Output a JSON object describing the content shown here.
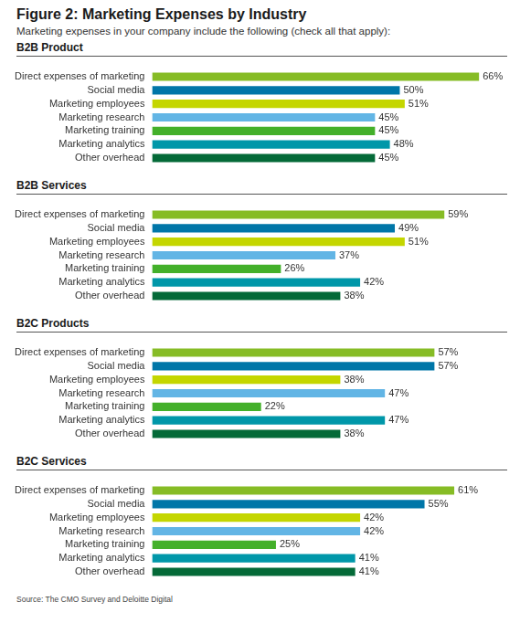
{
  "title": "Figure 2: Marketing Expenses by Industry",
  "subtitle": "Marketing expenses in your company include the following (check all that apply):",
  "source": "Source: The CMO Survey and Deloitte Digital",
  "chart_data": [
    {
      "type": "bar",
      "title": "B2B Product",
      "orientation": "horizontal",
      "categories": [
        "Direct expenses of marketing",
        "Social media",
        "Marketing employees",
        "Marketing research",
        "Marketing training",
        "Marketing analytics",
        "Other overhead"
      ],
      "values": [
        66,
        50,
        51,
        45,
        45,
        48,
        45
      ],
      "value_labels": [
        "66%",
        "50%",
        "51%",
        "45%",
        "45%",
        "48%",
        "45%"
      ],
      "colors": [
        "#86bc25",
        "#0076a8",
        "#c4d600",
        "#62b5e5",
        "#43b02a",
        "#0097a9",
        "#046a38"
      ],
      "xlim": [
        0,
        68
      ],
      "grid": false,
      "tick_labels": "y",
      "data_labels": true
    },
    {
      "type": "bar",
      "title": "B2B Services",
      "orientation": "horizontal",
      "categories": [
        "Direct expenses of marketing",
        "Social media",
        "Marketing employees",
        "Marketing research",
        "Marketing training",
        "Marketing analytics",
        "Other overhead"
      ],
      "values": [
        59,
        49,
        51,
        37,
        26,
        42,
        38
      ],
      "value_labels": [
        "59%",
        "49%",
        "51%",
        "37%",
        "26%",
        "42%",
        "38%"
      ],
      "colors": [
        "#86bc25",
        "#0076a8",
        "#c4d600",
        "#62b5e5",
        "#43b02a",
        "#0097a9",
        "#046a38"
      ],
      "xlim": [
        0,
        68
      ],
      "grid": false,
      "tick_labels": "y",
      "data_labels": true
    },
    {
      "type": "bar",
      "title": "B2C Products",
      "orientation": "horizontal",
      "categories": [
        "Direct expenses of marketing",
        "Social media",
        "Marketing employees",
        "Marketing research",
        "Marketing training",
        "Marketing analytics",
        "Other overhead"
      ],
      "values": [
        57,
        57,
        38,
        47,
        22,
        47,
        38
      ],
      "value_labels": [
        "57%",
        "57%",
        "38%",
        "47%",
        "22%",
        "47%",
        "38%"
      ],
      "colors": [
        "#86bc25",
        "#0076a8",
        "#c4d600",
        "#62b5e5",
        "#43b02a",
        "#0097a9",
        "#046a38"
      ],
      "xlim": [
        0,
        68
      ],
      "grid": false,
      "tick_labels": "y",
      "data_labels": true
    },
    {
      "type": "bar",
      "title": "B2C Services",
      "orientation": "horizontal",
      "categories": [
        "Direct expenses of marketing",
        "Social media",
        "Marketing employees",
        "Marketing research",
        "Marketing training",
        "Marketing analytics",
        "Other overhead"
      ],
      "values": [
        61,
        55,
        42,
        42,
        25,
        41,
        41
      ],
      "value_labels": [
        "61%",
        "55%",
        "42%",
        "42%",
        "25%",
        "41%",
        "41%"
      ],
      "colors": [
        "#86bc25",
        "#0076a8",
        "#c4d600",
        "#62b5e5",
        "#43b02a",
        "#0097a9",
        "#046a38"
      ],
      "xlim": [
        0,
        68
      ],
      "grid": false,
      "tick_labels": "y",
      "data_labels": true
    }
  ]
}
